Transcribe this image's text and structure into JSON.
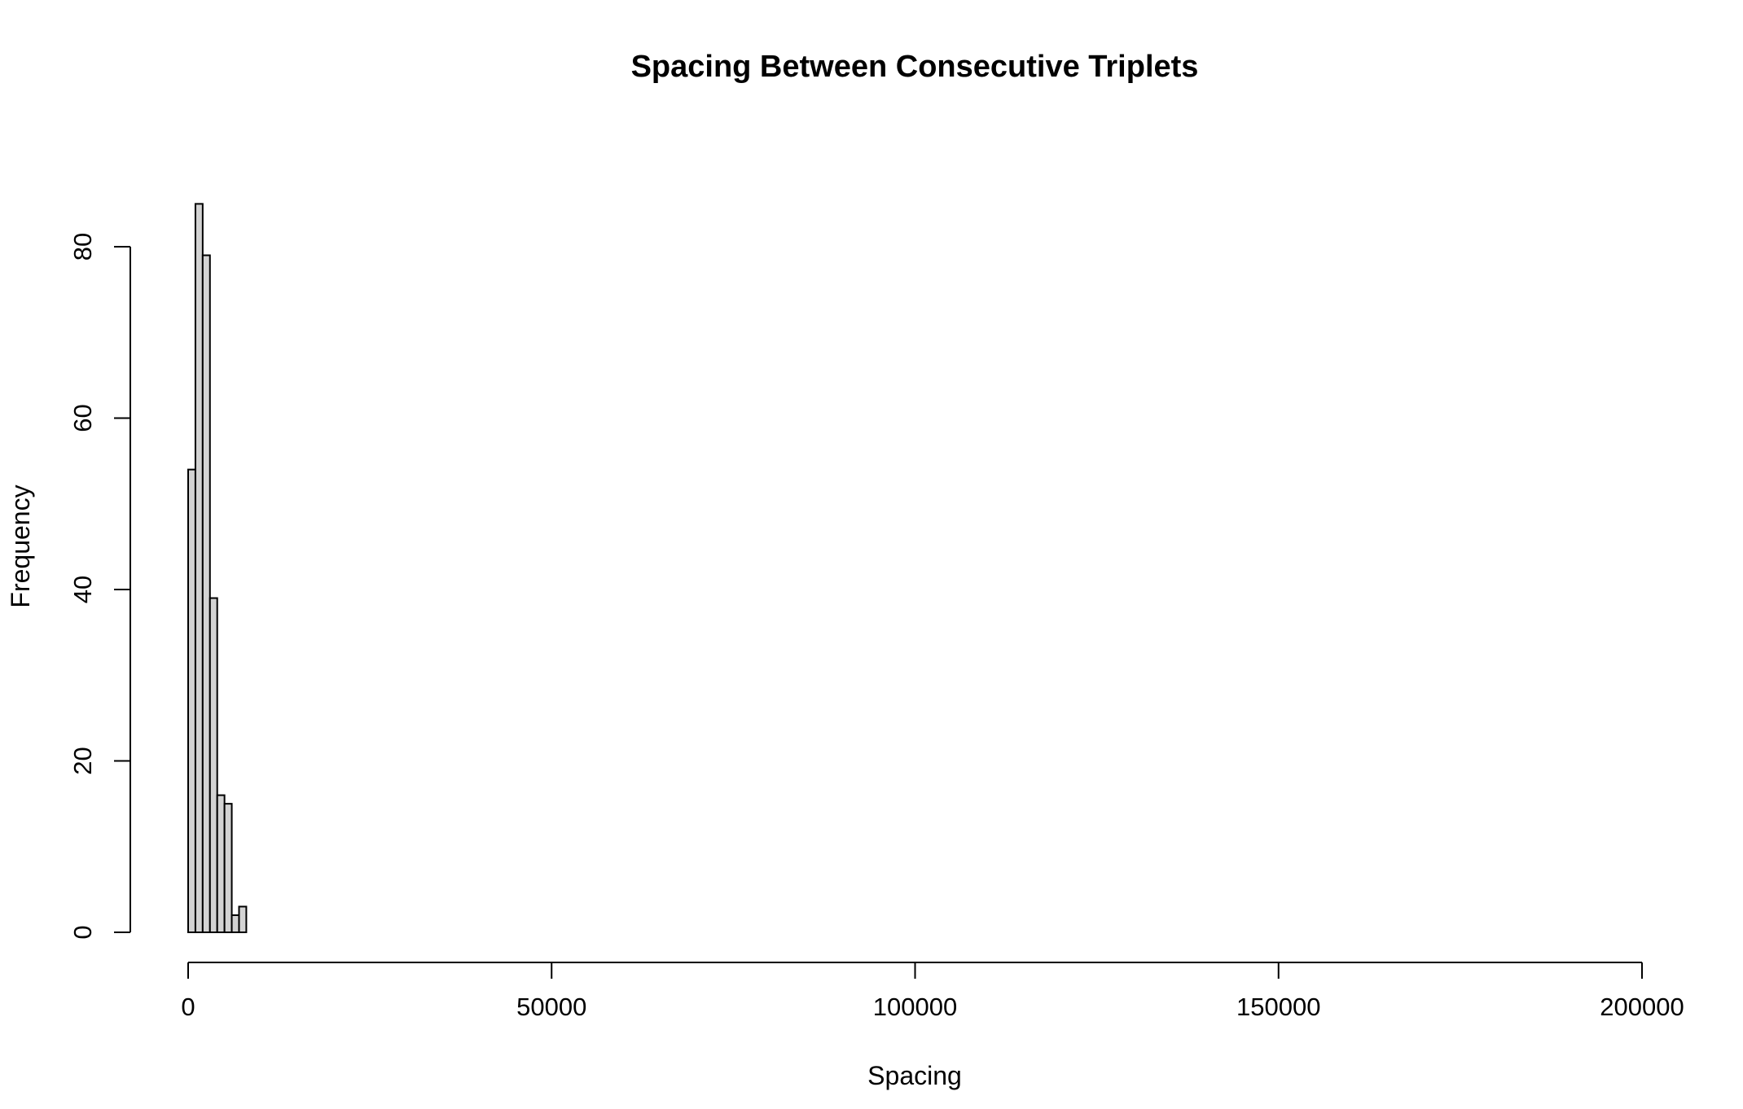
{
  "chart_data": {
    "type": "bar",
    "title": "Spacing Between Consecutive Triplets",
    "xlabel": "Spacing",
    "ylabel": "Frequency",
    "xlim": [
      0,
      200000
    ],
    "ylim": [
      0,
      85
    ],
    "x_ticks": [
      "0",
      "50000",
      "100000",
      "150000",
      "200000"
    ],
    "y_ticks": [
      "0",
      "20",
      "40",
      "60",
      "80"
    ],
    "bin_width": 1000,
    "bins": [
      {
        "start": 0,
        "end": 1000,
        "count": 54
      },
      {
        "start": 1000,
        "end": 2000,
        "count": 85
      },
      {
        "start": 2000,
        "end": 3000,
        "count": 79
      },
      {
        "start": 3000,
        "end": 4000,
        "count": 39
      },
      {
        "start": 4000,
        "end": 5000,
        "count": 16
      },
      {
        "start": 5000,
        "end": 6000,
        "count": 15
      },
      {
        "start": 6000,
        "end": 7000,
        "count": 2
      },
      {
        "start": 7000,
        "end": 8000,
        "count": 3
      }
    ],
    "grid": false,
    "legend": "none",
    "bar_color": "#d3d3d3",
    "border_color": "#000000"
  }
}
